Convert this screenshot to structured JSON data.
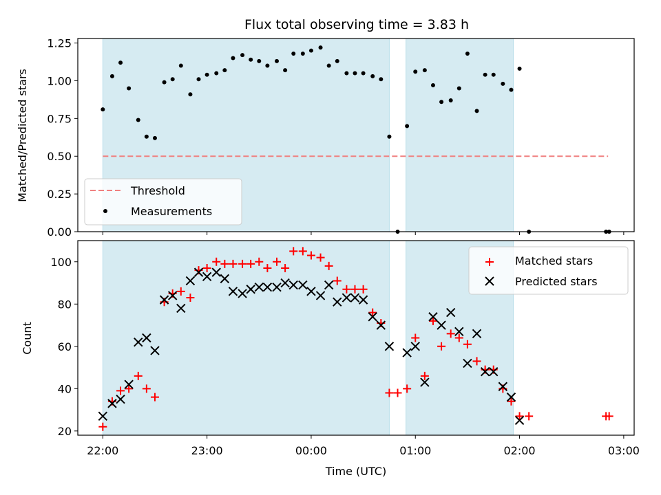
{
  "chart_data": [
    {
      "type": "scatter",
      "panel": "top",
      "title": "Flux total observing time = 3.83 h",
      "xlabel": "",
      "ylabel": "Matched/Predicted stars",
      "xticklabels": [
        "22:00",
        "23:00",
        "00:00",
        "01:00",
        "02:00",
        "03:00"
      ],
      "xtick_hours": [
        0,
        1,
        2,
        3,
        4,
        5
      ],
      "xlim_hours": [
        -0.24,
        5.1
      ],
      "ylim": [
        0,
        1.28
      ],
      "yticks": [
        0.0,
        0.25,
        0.5,
        0.75,
        1.0,
        1.25
      ],
      "yticklabels": [
        "0.00",
        "0.25",
        "0.50",
        "0.75",
        "1.00",
        "1.25"
      ],
      "shaded_intervals_hours": [
        [
          0.0,
          2.75
        ],
        [
          2.91,
          3.94
        ]
      ],
      "shade_color": "#add8e6",
      "threshold": {
        "name": "Threshold",
        "y": 0.5,
        "x_range_hours": [
          0.0,
          4.85
        ],
        "color": "#f08080"
      },
      "series": [
        {
          "name": "Measurements",
          "color": "#000000",
          "x_hours": [
            0.0,
            0.09,
            0.17,
            0.25,
            0.34,
            0.42,
            0.5,
            0.59,
            0.67,
            0.75,
            0.84,
            0.92,
            1.0,
            1.09,
            1.17,
            1.25,
            1.34,
            1.42,
            1.5,
            1.58,
            1.67,
            1.75,
            1.83,
            1.92,
            2.0,
            2.09,
            2.17,
            2.25,
            2.34,
            2.42,
            2.5,
            2.59,
            2.67,
            2.75,
            2.83,
            2.92,
            3.0,
            3.09,
            3.17,
            3.25,
            3.34,
            3.42,
            3.5,
            3.59,
            3.67,
            3.75,
            3.84,
            3.92,
            4.0,
            4.09,
            4.83,
            4.86
          ],
          "y": [
            0.81,
            1.03,
            1.12,
            0.95,
            0.74,
            0.63,
            0.62,
            0.99,
            1.01,
            1.1,
            0.91,
            1.01,
            1.04,
            1.05,
            1.07,
            1.15,
            1.17,
            1.14,
            1.13,
            1.1,
            1.13,
            1.07,
            1.18,
            1.18,
            1.2,
            1.22,
            1.1,
            1.13,
            1.05,
            1.05,
            1.05,
            1.03,
            1.01,
            0.63,
            0.0,
            0.7,
            1.06,
            1.07,
            0.97,
            0.86,
            0.87,
            0.95,
            1.18,
            0.8,
            1.04,
            1.04,
            0.98,
            0.94,
            1.08,
            0.0,
            0.0,
            0.0
          ]
        }
      ],
      "legend": {
        "placement": "lower-left",
        "entries": [
          "Threshold",
          "Measurements"
        ]
      }
    },
    {
      "type": "scatter",
      "panel": "bottom",
      "title": "",
      "xlabel": "Time (UTC)",
      "ylabel": "Count",
      "xticklabels": [
        "22:00",
        "23:00",
        "00:00",
        "01:00",
        "02:00",
        "03:00"
      ],
      "xtick_hours": [
        0,
        1,
        2,
        3,
        4,
        5
      ],
      "xlim_hours": [
        -0.24,
        5.1
      ],
      "ylim": [
        18,
        110
      ],
      "yticks": [
        20,
        40,
        60,
        80,
        100
      ],
      "yticklabels": [
        "20",
        "40",
        "60",
        "80",
        "100"
      ],
      "shaded_intervals_hours": [
        [
          0.0,
          2.75
        ],
        [
          2.91,
          3.94
        ]
      ],
      "series": [
        {
          "name": "Matched stars",
          "marker": "plus",
          "color": "#ff0000",
          "x_hours": [
            0.0,
            0.09,
            0.17,
            0.25,
            0.34,
            0.42,
            0.5,
            0.59,
            0.67,
            0.75,
            0.84,
            0.92,
            1.0,
            1.09,
            1.17,
            1.25,
            1.34,
            1.42,
            1.5,
            1.58,
            1.67,
            1.75,
            1.83,
            1.92,
            2.0,
            2.09,
            2.17,
            2.25,
            2.34,
            2.42,
            2.5,
            2.59,
            2.67,
            2.75,
            2.83,
            2.92,
            3.0,
            3.09,
            3.17,
            3.25,
            3.34,
            3.42,
            3.5,
            3.59,
            3.67,
            3.75,
            3.84,
            3.92,
            4.0,
            4.09,
            4.83,
            4.86
          ],
          "y": [
            22,
            34,
            39,
            40,
            46,
            40,
            36,
            81,
            85,
            86,
            83,
            96,
            97,
            100,
            99,
            99,
            99,
            99,
            100,
            97,
            100,
            97,
            105,
            105,
            103,
            102,
            98,
            91,
            87,
            87,
            87,
            76,
            71,
            38,
            38,
            40,
            64,
            46,
            72,
            60,
            66,
            64,
            61,
            53,
            49,
            49,
            40,
            34,
            27,
            27,
            27,
            27
          ]
        },
        {
          "name": "Predicted stars",
          "marker": "x",
          "color": "#000000",
          "x_hours": [
            0.0,
            0.09,
            0.17,
            0.25,
            0.34,
            0.42,
            0.5,
            0.59,
            0.67,
            0.75,
            0.84,
            0.92,
            1.0,
            1.09,
            1.17,
            1.25,
            1.34,
            1.42,
            1.5,
            1.58,
            1.67,
            1.75,
            1.83,
            1.92,
            2.0,
            2.09,
            2.17,
            2.25,
            2.34,
            2.42,
            2.5,
            2.59,
            2.67,
            2.75,
            2.92,
            3.0,
            3.09,
            3.17,
            3.25,
            3.34,
            3.42,
            3.5,
            3.59,
            3.67,
            3.75,
            3.84,
            3.92,
            4.0
          ],
          "y": [
            27,
            33,
            35,
            42,
            62,
            64,
            58,
            82,
            84,
            78,
            91,
            95,
            93,
            95,
            92,
            86,
            85,
            87,
            88,
            88,
            88,
            90,
            89,
            89,
            86,
            84,
            89,
            81,
            83,
            83,
            82,
            74,
            70,
            60,
            57,
            60,
            43,
            74,
            70,
            76,
            67,
            52,
            66,
            48,
            48,
            41,
            36,
            25
          ]
        }
      ],
      "legend": {
        "placement": "upper-right",
        "entries": [
          "Matched stars",
          "Predicted stars"
        ]
      }
    }
  ]
}
